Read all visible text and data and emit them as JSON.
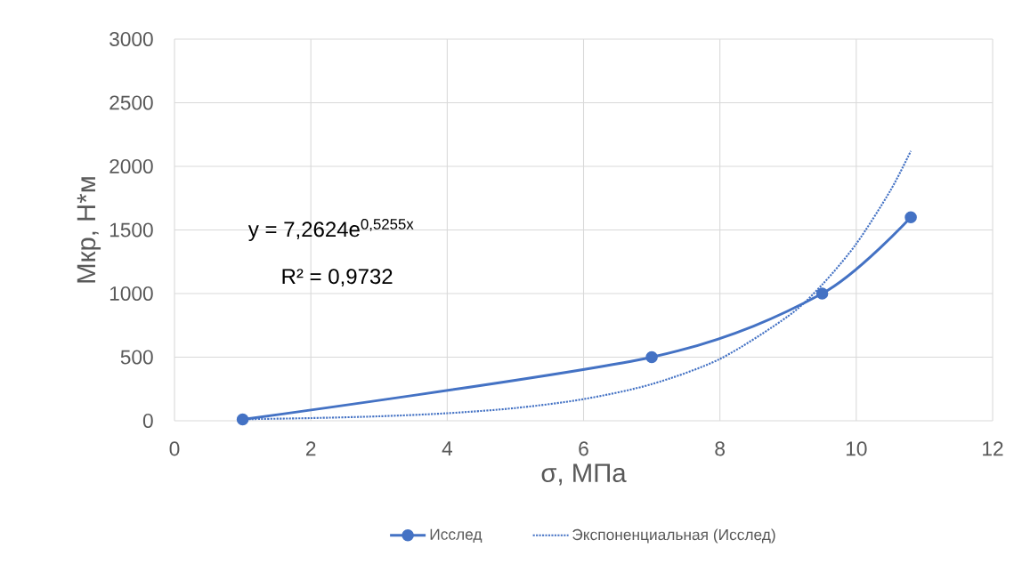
{
  "chart_data": {
    "type": "line",
    "xlabel": "σ, МПа",
    "ylabel": "Мкр, Н*м",
    "xlim": [
      0,
      12
    ],
    "xticks": [
      0,
      2,
      4,
      6,
      8,
      10,
      12
    ],
    "ylim": [
      0,
      3000
    ],
    "yticks": [
      0,
      500,
      1000,
      1500,
      2000,
      2500,
      3000
    ],
    "grid": true,
    "legend": "bottom",
    "series": [
      {
        "name": "Исслед",
        "color": "#4472c4",
        "marker": "circle",
        "line_style": "solid",
        "x": [
          1,
          7,
          9.5,
          10.8
        ],
        "values": [
          10,
          500,
          1000,
          1600
        ]
      },
      {
        "name": "Экспоненциальная (Исслед)",
        "color": "#4472c4",
        "marker": "none",
        "line_style": "dotted",
        "x": [
          1,
          2,
          3,
          4,
          5,
          6,
          7,
          8,
          9,
          9.5,
          10,
          10.5,
          10.8
        ],
        "values": [
          12,
          21,
          35,
          59,
          100,
          170,
          288,
          486,
          822,
          1070,
          1391,
          1809,
          2120
        ]
      }
    ],
    "annotations": [
      "y = 7,2624e$^{0,5255x}$",
      "R² = 0,9732"
    ]
  }
}
